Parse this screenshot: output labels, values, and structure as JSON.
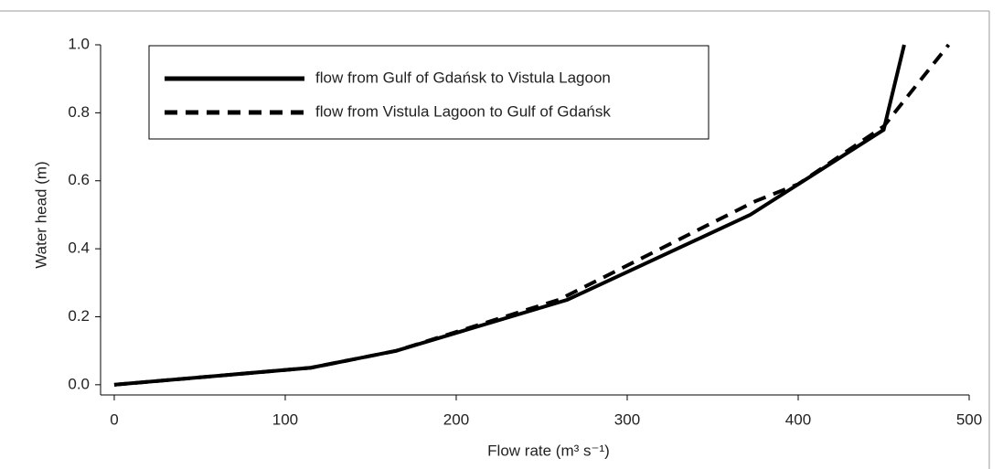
{
  "chart_data": {
    "type": "line",
    "xlabel": "Flow rate (m³ s⁻¹)",
    "ylabel": "Water head (m)",
    "xlim": [
      -8,
      500
    ],
    "ylim": [
      -0.03,
      1.0
    ],
    "xticks": [
      0,
      100,
      200,
      300,
      400,
      500
    ],
    "yticks": [
      {
        "value": 0,
        "label": "0.0"
      },
      {
        "value": 0.2,
        "label": "0.2"
      },
      {
        "value": 0.4,
        "label": "0.4"
      },
      {
        "value": 0.6,
        "label": "0.6"
      },
      {
        "value": 0.8,
        "label": "0.8"
      },
      {
        "value": 1.0,
        "label": "1.0"
      }
    ],
    "legend": "upper left",
    "series": [
      {
        "name": "flow from Gulf of Gdańsk to Vistula Lagoon",
        "color": "#000000",
        "style": "solid",
        "x": [
          0,
          115,
          165,
          265,
          372,
          450,
          462
        ],
        "values": [
          0,
          0.05,
          0.1,
          0.25,
          0.5,
          0.75,
          1.0
        ]
      },
      {
        "name": "flow from Vistula Lagoon to Gulf of Gdańsk",
        "color": "#000000",
        "style": "dashed",
        "x": [
          0,
          115,
          165,
          260,
          375,
          400,
          450,
          488
        ],
        "values": [
          0,
          0.05,
          0.1,
          0.25,
          0.54,
          0.59,
          0.76,
          1.0
        ]
      }
    ]
  }
}
